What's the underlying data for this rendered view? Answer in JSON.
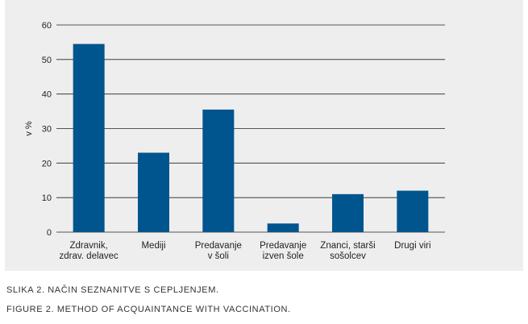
{
  "chart_data": {
    "type": "bar",
    "categories": [
      [
        "Zdravnik,",
        "zdrav. delavec"
      ],
      [
        "Mediji"
      ],
      [
        "Predavanje",
        "v šoli"
      ],
      [
        "Predavanje",
        "izven šole"
      ],
      [
        "Znanci, starši",
        "sošolcev"
      ],
      [
        "Drugi viri"
      ]
    ],
    "values": [
      54.5,
      23,
      35.5,
      2.5,
      11,
      12
    ],
    "ylabel": "v %",
    "ylim": [
      0,
      60
    ],
    "yticks": [
      0,
      10,
      20,
      30,
      40,
      50,
      60
    ],
    "grid": true,
    "bar_color": "#00558f"
  },
  "captions": {
    "si": "SLIKA 2. NAČIN SEZNANITVE S CEPLJENJEM.",
    "en": "FIGURE 2. METHOD OF ACQUAINTANCE WITH VACCINATION."
  }
}
